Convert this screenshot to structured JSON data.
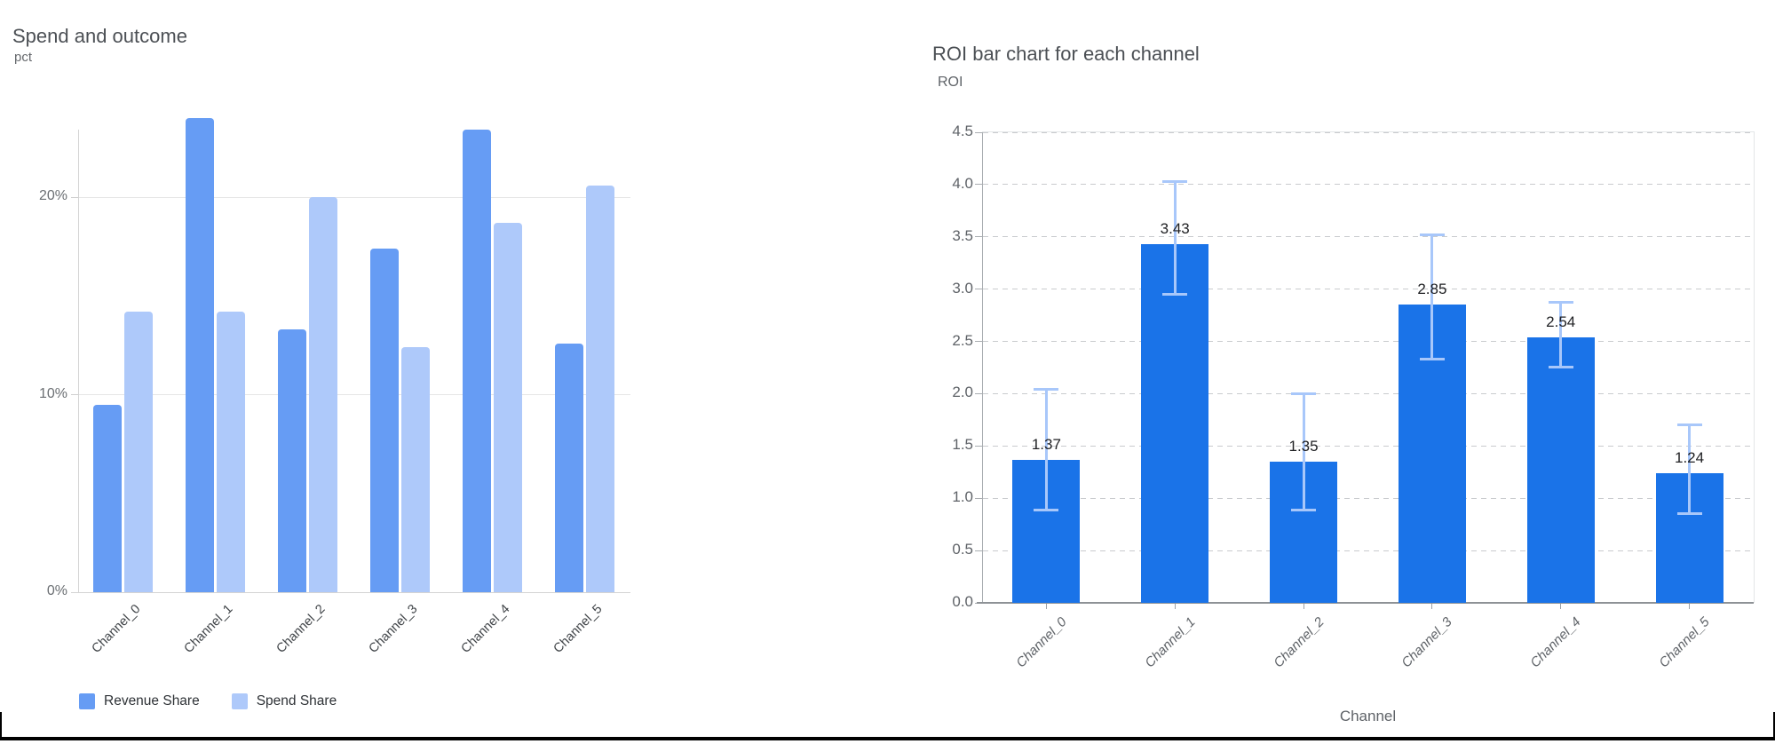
{
  "window": {
    "background": "#ffffff",
    "bottom_border_color": "#000000"
  },
  "chart_data": [
    {
      "type": "bar",
      "title": "Spend and outcome",
      "ylabel": "pct",
      "categories": [
        "Channel_0",
        "Channel_1",
        "Channel_2",
        "Channel_3",
        "Channel_4",
        "Channel_5"
      ],
      "series": [
        {
          "name": "Revenue Share",
          "color": "#669cf4",
          "values": [
            9.5,
            24.0,
            13.3,
            17.4,
            23.4,
            12.6
          ]
        },
        {
          "name": "Spend Share",
          "color": "#aec9fa",
          "values": [
            14.2,
            14.2,
            20.0,
            12.4,
            18.7,
            20.6
          ]
        }
      ],
      "value_unit": "%",
      "yticks": [
        0,
        10,
        20
      ],
      "ytick_labels": [
        "0%",
        "10%",
        "20%"
      ],
      "ylim": [
        0,
        24.1
      ],
      "grid": true,
      "legend_position": "bottom"
    },
    {
      "type": "bar",
      "title": "ROI bar chart for each channel",
      "ylabel": "ROI",
      "xlabel": "Channel",
      "categories": [
        "Channel_0",
        "Channel_1",
        "Channel_2",
        "Channel_3",
        "Channel_4",
        "Channel_5"
      ],
      "values": [
        1.37,
        3.43,
        1.35,
        2.85,
        2.54,
        1.24
      ],
      "bar_labels": [
        "1.37",
        "3.43",
        "1.35",
        "2.85",
        "2.54",
        "1.24"
      ],
      "error_low": [
        0.88,
        2.95,
        0.88,
        2.33,
        2.25,
        0.85
      ],
      "error_high": [
        2.05,
        4.03,
        2.0,
        3.52,
        2.88,
        1.71
      ],
      "bar_color": "#1a73e8",
      "error_color": "#a8c7fa",
      "yticks": [
        0,
        0.5,
        1.0,
        1.5,
        2.0,
        2.5,
        3.0,
        3.5,
        4.0,
        4.5
      ],
      "ytick_labels": [
        "0.0",
        "0.5",
        "1.0",
        "1.5",
        "2.0",
        "2.5",
        "3.0",
        "3.5",
        "4.0",
        "4.5"
      ],
      "ylim": [
        0,
        4.5
      ],
      "grid": "dashed",
      "legend_position": "none"
    }
  ]
}
